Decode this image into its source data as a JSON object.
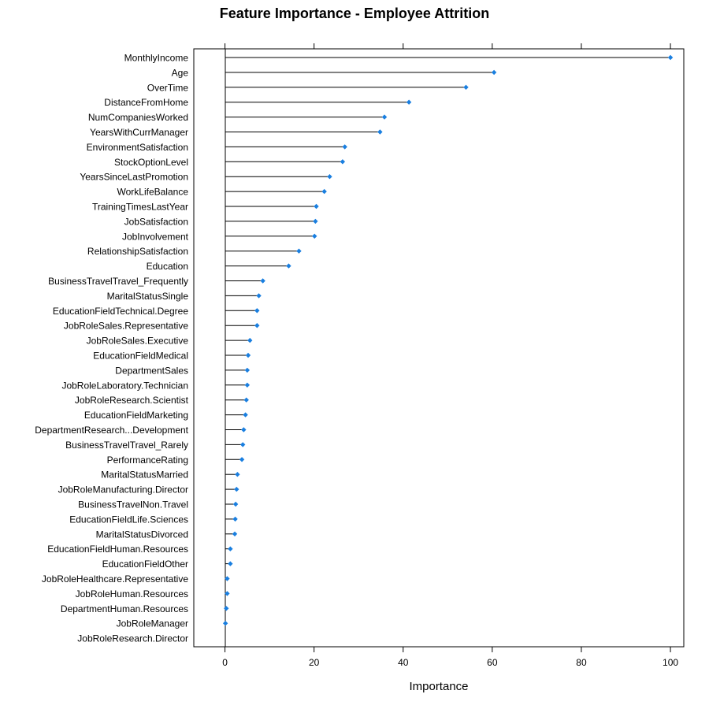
{
  "chart_data": {
    "type": "lollipop",
    "title": "Feature Importance - Employee Attrition",
    "xlabel": "Importance",
    "ylabel": "",
    "xlim": [
      -7,
      103
    ],
    "x_ticks": [
      0,
      20,
      40,
      60,
      80,
      100
    ],
    "grid": false,
    "colors": {
      "point": "#1a7fe0",
      "stem": "#000000"
    },
    "categories": [
      "MonthlyIncome",
      "Age",
      "OverTime",
      "DistanceFromHome",
      "NumCompaniesWorked",
      "YearsWithCurrManager",
      "EnvironmentSatisfaction",
      "StockOptionLevel",
      "YearsSinceLastPromotion",
      "WorkLifeBalance",
      "TrainingTimesLastYear",
      "JobSatisfaction",
      "JobInvolvement",
      "RelationshipSatisfaction",
      "Education",
      "BusinessTravelTravel_Frequently",
      "MaritalStatusSingle",
      "EducationFieldTechnical.Degree",
      "JobRoleSales.Representative",
      "JobRoleSales.Executive",
      "EducationFieldMedical",
      "DepartmentSales",
      "JobRoleLaboratory.Technician",
      "JobRoleResearch.Scientist",
      "EducationFieldMarketing",
      "DepartmentResearch...Development",
      "BusinessTravelTravel_Rarely",
      "PerformanceRating",
      "MaritalStatusMarried",
      "JobRoleManufacturing.Director",
      "BusinessTravelNon.Travel",
      "EducationFieldLife.Sciences",
      "MaritalStatusDivorced",
      "EducationFieldHuman.Resources",
      "EducationFieldOther",
      "JobRoleHealthcare.Representative",
      "JobRoleHuman.Resources",
      "DepartmentHuman.Resources",
      "JobRoleManager",
      "JobRoleResearch.Director"
    ],
    "values": [
      100,
      60.4,
      54.1,
      41.3,
      35.8,
      34.8,
      26.9,
      26.4,
      23.5,
      22.3,
      20.5,
      20.3,
      20.1,
      16.6,
      14.3,
      8.5,
      7.6,
      7.2,
      7.2,
      5.6,
      5.2,
      5.0,
      5.0,
      4.8,
      4.6,
      4.2,
      4.0,
      3.8,
      2.8,
      2.6,
      2.4,
      2.3,
      2.2,
      1.2,
      1.2,
      0.5,
      0.5,
      0.3,
      0.1,
      0
    ]
  }
}
